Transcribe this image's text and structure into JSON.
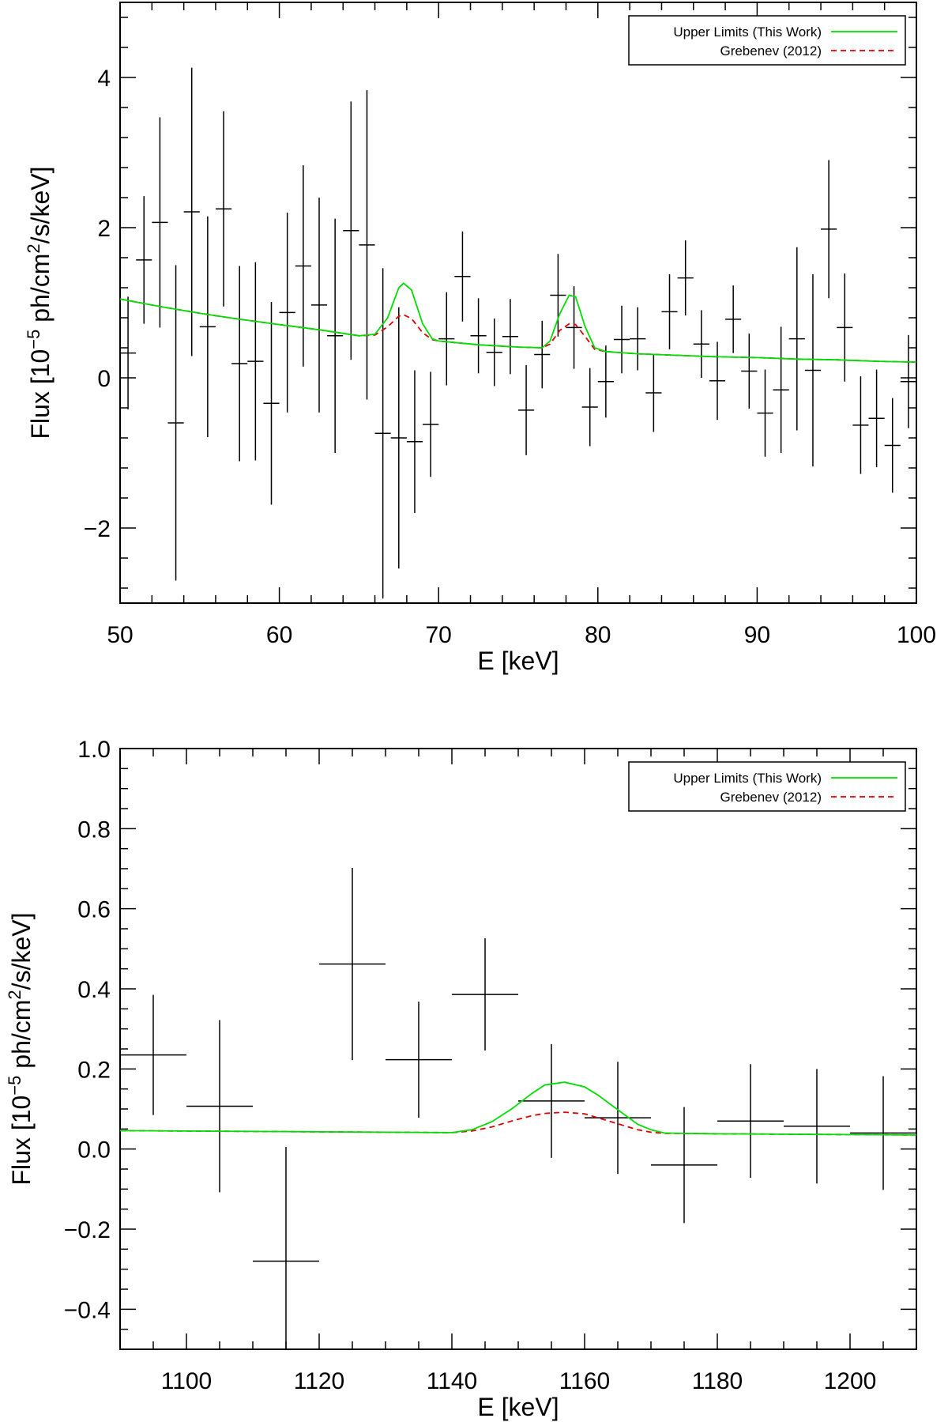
{
  "chart_data": [
    {
      "type": "line",
      "xlabel": "E [keV]",
      "ylabel": {
        "prefix": "Flux [10",
        "exp": "−5",
        "mid": " ph/cm",
        "sq": "2",
        "suffix": "/s/keV]"
      },
      "xlim": [
        50,
        100
      ],
      "ylim": [
        -3,
        5
      ],
      "xticks": [
        50,
        60,
        70,
        80,
        90,
        100
      ],
      "xticklabels": [
        "50",
        "60",
        "70",
        "80",
        "90",
        "100"
      ],
      "yticks": [
        -2,
        0,
        2,
        4
      ],
      "yticklabels": [
        "−2",
        "0",
        "2",
        "4"
      ],
      "grid": false,
      "legend_position": "top-right",
      "legend": [
        {
          "label": "Upper Limits (This Work)",
          "color": "#00dd00",
          "style": "solid"
        },
        {
          "label": "Grebenev (2012)",
          "color": "#e00000",
          "style": "dashed"
        }
      ],
      "data_points": {
        "x": [
          50.5,
          51.5,
          52.5,
          53.5,
          54.5,
          55.5,
          56.5,
          57.5,
          58.5,
          59.5,
          60.5,
          61.5,
          62.5,
          63.5,
          64.5,
          65.5,
          66.5,
          67.5,
          68.5,
          69.5,
          70.5,
          71.5,
          72.5,
          73.5,
          74.5,
          75.5,
          76.5,
          77.5,
          78.5,
          79.5,
          80.5,
          81.5,
          82.5,
          83.5,
          84.5,
          85.5,
          86.5,
          87.5,
          88.5,
          89.5,
          90.5,
          91.5,
          92.5,
          93.5,
          94.5,
          95.5,
          96.5,
          97.5,
          98.5,
          99.5
        ],
        "y": [
          0.33,
          1.57,
          2.07,
          -0.6,
          2.21,
          0.68,
          2.25,
          0.19,
          0.22,
          -0.34,
          0.87,
          1.49,
          0.97,
          0.56,
          1.96,
          1.77,
          -0.74,
          -0.8,
          -0.85,
          -0.62,
          0.52,
          1.35,
          0.56,
          0.34,
          0.55,
          -0.43,
          0.31,
          1.1,
          0.67,
          -0.39,
          -0.05,
          0.51,
          0.52,
          -0.2,
          0.88,
          1.33,
          0.45,
          -0.04,
          0.78,
          0.09,
          -0.47,
          -0.16,
          0.52,
          0.1,
          1.98,
          0.67,
          -0.63,
          -0.54,
          -0.9,
          -0.05
        ],
        "yerr": [
          0.75,
          0.85,
          1.4,
          2.1,
          1.92,
          1.47,
          1.3,
          1.3,
          1.32,
          1.35,
          1.33,
          1.34,
          1.43,
          1.56,
          1.72,
          2.06,
          2.2,
          1.74,
          0.95,
          0.7,
          0.62,
          0.6,
          0.5,
          0.45,
          0.5,
          0.6,
          0.45,
          0.55,
          0.55,
          0.52,
          0.48,
          0.45,
          0.42,
          0.52,
          0.5,
          0.5,
          0.45,
          0.52,
          0.45,
          0.5,
          0.58,
          0.84,
          1.22,
          1.28,
          0.92,
          0.72,
          0.65,
          0.65,
          0.63,
          0.62
        ]
      },
      "xerr": 0.5,
      "series": [
        {
          "name": "Upper Limits (This Work)",
          "x": [
            50,
            52.5,
            55,
            57.5,
            60,
            62.5,
            65,
            66,
            66.8,
            67.5,
            67.8,
            68.3,
            69,
            69.6,
            70,
            72.5,
            75,
            76.5,
            77,
            77.6,
            78.2,
            78.6,
            79.2,
            79.8,
            80.5,
            82.5,
            85,
            87.5,
            90,
            92.5,
            95,
            97.5,
            100
          ],
          "y": [
            1.05,
            0.95,
            0.86,
            0.78,
            0.71,
            0.64,
            0.56,
            0.58,
            0.8,
            1.2,
            1.26,
            1.17,
            0.72,
            0.52,
            0.49,
            0.44,
            0.41,
            0.4,
            0.49,
            0.85,
            1.1,
            1.08,
            0.68,
            0.4,
            0.35,
            0.32,
            0.3,
            0.28,
            0.27,
            0.25,
            0.24,
            0.22,
            0.21
          ]
        },
        {
          "name": "Grebenev (2012)",
          "x": [
            50,
            52.5,
            55,
            57.5,
            60,
            62.5,
            65,
            66,
            66.8,
            67.5,
            67.8,
            68.3,
            69,
            69.6,
            70,
            72.5,
            75,
            76.5,
            77,
            77.6,
            78.2,
            78.6,
            79.2,
            79.8,
            80.5,
            82.5,
            85,
            87.5,
            90,
            92.5,
            95,
            97.5,
            100
          ],
          "y": [
            1.05,
            0.95,
            0.86,
            0.78,
            0.71,
            0.64,
            0.56,
            0.57,
            0.68,
            0.82,
            0.84,
            0.79,
            0.6,
            0.51,
            0.49,
            0.44,
            0.41,
            0.4,
            0.45,
            0.63,
            0.72,
            0.71,
            0.55,
            0.38,
            0.35,
            0.32,
            0.3,
            0.28,
            0.27,
            0.25,
            0.24,
            0.22,
            0.21
          ]
        }
      ]
    },
    {
      "type": "line",
      "xlabel": "E [keV]",
      "ylabel": {
        "prefix": "Flux [10",
        "exp": "−5",
        "mid": " ph/cm",
        "sq": "2",
        "suffix": "/s/keV]"
      },
      "xlim": [
        1090,
        1210
      ],
      "ylim": [
        -0.5,
        1.0
      ],
      "xticks": [
        1100,
        1120,
        1140,
        1160,
        1180,
        1200
      ],
      "xticklabels": [
        "1100",
        "1120",
        "1140",
        "1160",
        "1180",
        "1200"
      ],
      "yticks": [
        -0.4,
        -0.2,
        0.0,
        0.2,
        0.4,
        0.6,
        0.8,
        1.0
      ],
      "yticklabels": [
        "−0.4",
        "−0.2",
        "0.0",
        "0.2",
        "0.4",
        "0.6",
        "0.8",
        "1.0"
      ],
      "grid": false,
      "legend_position": "top-right",
      "legend": [
        {
          "label": "Upper Limits (This Work)",
          "color": "#00dd00",
          "style": "solid"
        },
        {
          "label": "Grebenev (2012)",
          "color": "#e00000",
          "style": "dashed"
        }
      ],
      "data_points": {
        "x": [
          1095,
          1105,
          1115,
          1125,
          1135,
          1145,
          1155,
          1165,
          1175,
          1185,
          1195,
          1205
        ],
        "y": [
          0.235,
          0.107,
          -0.28,
          0.462,
          0.223,
          0.386,
          0.12,
          0.078,
          -0.04,
          0.07,
          0.057,
          0.04
        ],
        "yerr": [
          0.15,
          0.215,
          0.285,
          0.24,
          0.145,
          0.14,
          0.142,
          0.14,
          0.145,
          0.142,
          0.143,
          0.142
        ]
      },
      "xerr": 5,
      "series": [
        {
          "name": "Upper Limits (This Work)",
          "x": [
            1090,
            1100,
            1110,
            1120,
            1130,
            1140,
            1143,
            1146,
            1149,
            1152,
            1154,
            1157,
            1160,
            1162,
            1165,
            1168,
            1170,
            1172,
            1175,
            1180,
            1190,
            1200,
            1210
          ],
          "y": [
            0.046,
            0.045,
            0.044,
            0.043,
            0.042,
            0.041,
            0.048,
            0.068,
            0.1,
            0.138,
            0.16,
            0.167,
            0.155,
            0.135,
            0.098,
            0.062,
            0.048,
            0.04,
            0.039,
            0.038,
            0.037,
            0.036,
            0.035
          ]
        },
        {
          "name": "Grebenev (2012)",
          "x": [
            1090,
            1100,
            1110,
            1120,
            1130,
            1140,
            1143,
            1146,
            1149,
            1152,
            1154,
            1157,
            1160,
            1162,
            1165,
            1168,
            1170,
            1172,
            1175,
            1180,
            1190,
            1200,
            1210
          ],
          "y": [
            0.046,
            0.045,
            0.044,
            0.043,
            0.042,
            0.041,
            0.045,
            0.055,
            0.07,
            0.083,
            0.089,
            0.092,
            0.088,
            0.078,
            0.063,
            0.048,
            0.042,
            0.039,
            0.039,
            0.038,
            0.037,
            0.036,
            0.035
          ]
        }
      ]
    }
  ]
}
